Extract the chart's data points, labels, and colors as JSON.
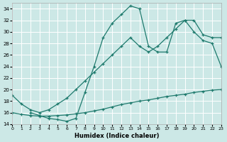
{
  "xlabel": "Humidex (Indice chaleur)",
  "bg_color": "#cce8e6",
  "grid_color": "#ffffff",
  "line_color": "#1e7a6d",
  "xlim": [
    0,
    23
  ],
  "ylim": [
    14,
    35
  ],
  "yticks": [
    14,
    16,
    18,
    20,
    22,
    24,
    26,
    28,
    30,
    32,
    34
  ],
  "xticks": [
    0,
    1,
    2,
    3,
    4,
    5,
    6,
    7,
    8,
    9,
    10,
    11,
    12,
    13,
    14,
    15,
    16,
    17,
    18,
    19,
    20,
    21,
    22,
    23
  ],
  "series": [
    {
      "x": [
        0,
        1,
        2,
        3,
        4,
        5,
        6,
        7,
        8,
        9,
        10,
        11,
        12,
        13,
        14,
        15,
        16,
        17,
        18,
        19,
        20,
        21,
        22,
        23
      ],
      "y": [
        16.0,
        15.7,
        15.5,
        15.4,
        15.4,
        15.5,
        15.6,
        15.8,
        16.0,
        16.3,
        16.6,
        17.0,
        17.4,
        17.7,
        18.0,
        18.2,
        18.5,
        18.8,
        19.0,
        19.2,
        19.5,
        19.7,
        19.9,
        20.0
      ]
    },
    {
      "x": [
        0,
        1,
        2,
        3,
        4,
        5,
        6,
        7,
        8,
        9,
        10,
        11,
        12,
        13,
        14,
        15,
        16,
        17,
        18,
        19,
        20,
        21,
        22,
        23
      ],
      "y": [
        19.0,
        17.5,
        16.5,
        16.0,
        16.5,
        17.5,
        18.5,
        20.0,
        21.5,
        23.0,
        24.5,
        26.0,
        27.5,
        29.0,
        27.5,
        26.5,
        27.5,
        29.0,
        30.5,
        32.0,
        32.0,
        29.5,
        29.0,
        29.0
      ]
    },
    {
      "x": [
        2,
        3,
        4,
        5,
        6,
        7,
        8,
        9,
        10,
        11,
        12,
        13,
        14,
        15,
        16,
        17,
        18,
        19,
        20,
        21,
        22,
        23
      ],
      "y": [
        16.0,
        15.5,
        15.0,
        14.8,
        14.5,
        15.0,
        19.5,
        24.0,
        29.0,
        31.5,
        33.0,
        34.5,
        34.0,
        27.5,
        26.5,
        26.5,
        31.5,
        32.0,
        30.0,
        28.5,
        28.0,
        24.0
      ]
    }
  ]
}
